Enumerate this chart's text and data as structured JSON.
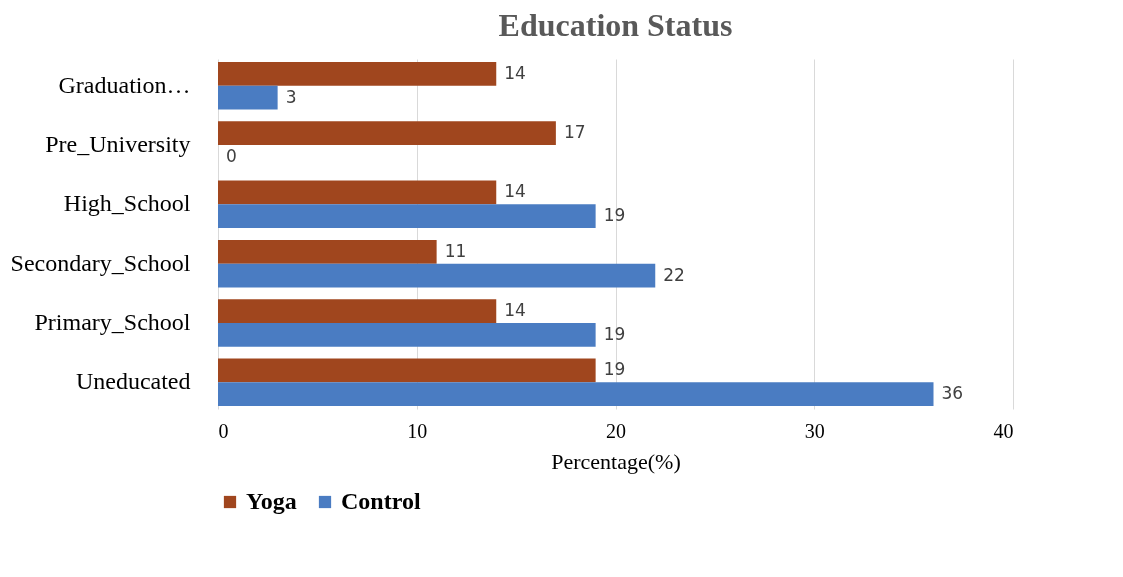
{
  "chart_data": {
    "type": "bar",
    "orientation": "horizontal",
    "title": "Education Status",
    "xlabel": "Percentage(%)",
    "categories": [
      "Graduation…",
      "Pre_University",
      "High_School",
      "Secondary_School",
      "Primary_School",
      "Uneducated"
    ],
    "series": [
      {
        "name": "Yoga",
        "color": "#a0461e",
        "values": [
          14,
          17,
          14,
          11,
          14,
          19
        ]
      },
      {
        "name": "Control",
        "color": "#4a7cc2",
        "values": [
          3,
          0,
          19,
          22,
          19,
          36
        ]
      }
    ],
    "xlim": [
      0,
      40
    ],
    "xticks": [
      0,
      10,
      20,
      30,
      40
    ],
    "grid": "x",
    "legend": "bottom",
    "data_labels": true
  }
}
